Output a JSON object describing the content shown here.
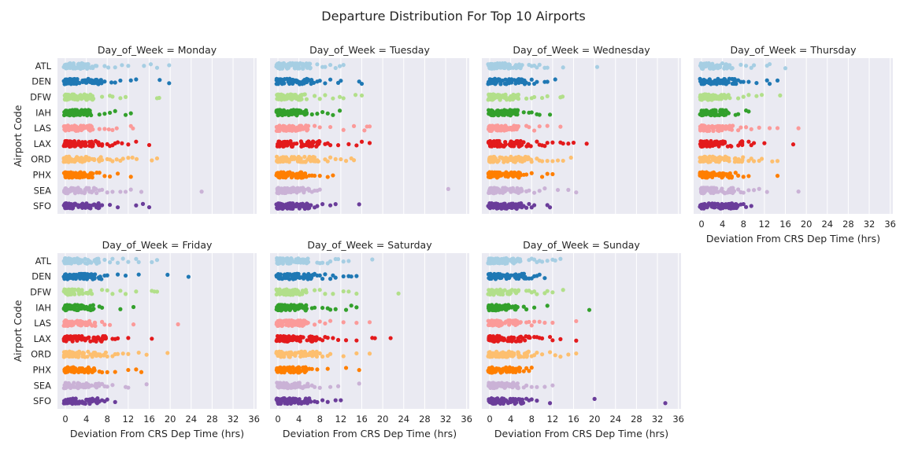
{
  "chart_data": {
    "type": "scatter",
    "title": "Departure Distribution For Top 10 Airports",
    "xlabel": "Deviation From CRS Dep Time (hrs)",
    "ylabel": "Airport Code",
    "xlim": [
      -1.5,
      36.5
    ],
    "xticks": [
      0,
      4,
      8,
      12,
      16,
      20,
      24,
      28,
      32,
      36
    ],
    "categories": [
      "ATL",
      "DEN",
      "DFW",
      "IAH",
      "LAS",
      "LAX",
      "ORD",
      "PHX",
      "SEA",
      "SFO"
    ],
    "grid": true,
    "colors": [
      "#a6cee3",
      "#1f78b4",
      "#b2df8a",
      "#33a02c",
      "#fb9a99",
      "#e31a1c",
      "#fdbf6f",
      "#ff7f00",
      "#cab2d6",
      "#6a3d9a"
    ],
    "background_color": "#eaeaf2",
    "panels": [
      {
        "title": "Day_of_Week = Monday",
        "dense_until": [
          6.0,
          7.0,
          5.5,
          5.0,
          5.5,
          7.5,
          7.5,
          5.5,
          6.0,
          6.5
        ],
        "outliers": [
          [
            7.5,
            8.2,
            9.5,
            10.8,
            12.0,
            15.0,
            16.3,
            17.5,
            19.8
          ],
          [
            7.5,
            8.8,
            9.5,
            10.5,
            12.5,
            13.5,
            18.0,
            19.8
          ],
          [
            7.0,
            8.5,
            9.0,
            10.5,
            11.5,
            17.5,
            17.9
          ],
          [
            6.5,
            7.5,
            8.5,
            9.5,
            11.5,
            12.5
          ],
          [
            6.5,
            7.5,
            8.3,
            9.0,
            9.8,
            12.5,
            12.9
          ],
          [
            8.0,
            8.5,
            9.0,
            9.5,
            10.0,
            10.8,
            12.0,
            13.5,
            16.0
          ],
          [
            8.0,
            8.5,
            9.0,
            9.8,
            10.5,
            11.0,
            12.0,
            12.8,
            13.6,
            16.5,
            17.5
          ],
          [
            6.0,
            6.5,
            7.5,
            8.5,
            10.0,
            12.5
          ],
          [
            6.5,
            7.0,
            8.0,
            9.0,
            10.5,
            11.5,
            12.5,
            14.5,
            26.0
          ],
          [
            7.0,
            8.5,
            10.0,
            13.5,
            14.8,
            16.0
          ]
        ]
      },
      {
        "title": "Day_of_Week = Tuesday",
        "dense_until": [
          6.5,
          7.0,
          5.5,
          5.5,
          6.0,
          8.0,
          8.0,
          5.5,
          6.0,
          6.5
        ],
        "outliers": [
          [
            7.5,
            8.5,
            9.0,
            10.0,
            11.0,
            11.8,
            12.5
          ],
          [
            7.5,
            8.0,
            9.0,
            10.0,
            11.5,
            12.0,
            15.5,
            16.0
          ],
          [
            7.0,
            8.0,
            9.0,
            10.5,
            11.8,
            12.5,
            14.8,
            16.0
          ],
          [
            6.5,
            7.5,
            8.5,
            9.5,
            10.5,
            11.8
          ],
          [
            7.0,
            8.0,
            10.0,
            12.5,
            14.5,
            16.5,
            17.0,
            17.5
          ],
          [
            9.0,
            9.5,
            10.0,
            11.5,
            13.5,
            15.0,
            16.0,
            17.5
          ],
          [
            9.0,
            9.5,
            10.0,
            11.0,
            12.0,
            13.0,
            14.0,
            14.5
          ],
          [
            6.0,
            6.5,
            7.0,
            8.0,
            9.5,
            10.5
          ],
          [
            6.5,
            7.0,
            7.5,
            8.0,
            32.5
          ],
          [
            7.0,
            7.5,
            8.5,
            10.0,
            11.0,
            15.5
          ]
        ]
      },
      {
        "title": "Day_of_Week = Wednesday",
        "dense_until": [
          6.5,
          7.0,
          5.5,
          5.5,
          6.0,
          8.0,
          8.0,
          6.0,
          6.5,
          6.5
        ],
        "outliers": [
          [
            7.5,
            8.0,
            8.5,
            9.0,
            9.5,
            10.5,
            11.0,
            14.0,
            20.5
          ],
          [
            7.5,
            8.0,
            8.5,
            9.0,
            10.5,
            11.0,
            12.5
          ],
          [
            7.0,
            8.0,
            8.5,
            10.0,
            11.0,
            13.5,
            13.9
          ],
          [
            6.5,
            7.5,
            8.0,
            9.0,
            9.5,
            11.5
          ],
          [
            7.0,
            7.5,
            8.5,
            9.5,
            11.0,
            13.5
          ],
          [
            9.0,
            9.5,
            10.0,
            10.5,
            11.0,
            12.0,
            13.5,
            14.0,
            15.0,
            16.0,
            18.5
          ],
          [
            9.0,
            9.5,
            10.0,
            11.0,
            12.0,
            13.0,
            14.0,
            15.5
          ],
          [
            6.5,
            7.0,
            8.0,
            10.0,
            11.0,
            12.0
          ],
          [
            7.0,
            7.5,
            8.5,
            9.5,
            10.5,
            13.0,
            15.0,
            16.5
          ],
          [
            7.0,
            7.5,
            8.0,
            8.5,
            11.0,
            11.5
          ]
        ]
      },
      {
        "title": "Day_of_Week = Thursday",
        "dense_until": [
          6.0,
          7.0,
          5.5,
          5.5,
          6.0,
          8.0,
          8.0,
          6.0,
          6.5,
          7.0
        ],
        "outliers": [
          [
            7.5,
            8.5,
            9.5,
            10.0,
            12.5,
            13.0,
            16.0
          ],
          [
            7.5,
            8.0,
            9.0,
            10.5,
            12.5,
            13.0,
            14.5
          ],
          [
            7.0,
            8.0,
            9.0,
            10.5,
            11.5,
            15.0
          ],
          [
            6.5,
            7.0,
            8.5,
            9.0
          ],
          [
            7.0,
            7.5,
            8.5,
            9.5,
            11.0,
            13.0,
            14.5,
            18.5
          ],
          [
            9.0,
            9.5,
            10.0,
            12.0,
            17.5
          ],
          [
            9.0,
            9.5,
            10.0,
            11.0,
            11.5,
            13.5,
            14.5
          ],
          [
            6.5,
            7.0,
            8.0,
            9.0,
            14.5
          ],
          [
            7.0,
            7.5,
            8.0,
            9.0,
            10.0,
            11.0,
            12.5,
            18.5
          ],
          [
            7.5,
            8.0,
            8.5,
            9.5
          ]
        ]
      },
      {
        "title": "Day_of_Week = Friday",
        "dense_until": [
          6.5,
          7.0,
          5.5,
          5.5,
          6.0,
          8.0,
          8.0,
          6.0,
          6.5,
          6.5
        ],
        "outliers": [
          [
            7.5,
            8.5,
            9.0,
            10.0,
            11.0,
            12.0,
            13.5,
            14.0,
            16.5,
            17.5
          ],
          [
            7.5,
            8.0,
            10.0,
            11.5,
            14.0,
            19.5,
            23.5
          ],
          [
            7.0,
            8.0,
            9.0,
            10.5,
            11.5,
            13.5,
            16.5,
            17.0,
            17.5
          ],
          [
            6.5,
            7.0,
            10.5,
            13.0
          ],
          [
            7.0,
            7.5,
            8.5,
            13.0,
            21.5
          ],
          [
            9.0,
            9.5,
            10.0,
            12.0,
            16.5
          ],
          [
            9.0,
            9.5,
            10.0,
            11.0,
            12.0,
            14.0,
            15.5,
            19.5
          ],
          [
            6.5,
            7.0,
            8.0,
            9.5,
            12.0,
            13.5,
            14.5
          ],
          [
            7.0,
            7.5,
            8.0,
            9.0,
            11.5,
            12.0,
            15.5
          ],
          [
            7.0,
            7.5,
            8.0,
            9.5
          ]
        ]
      },
      {
        "title": "Day_of_Week = Saturday",
        "dense_until": [
          6.0,
          7.0,
          5.5,
          5.5,
          6.0,
          7.5,
          7.5,
          5.5,
          6.0,
          6.5
        ],
        "outliers": [
          [
            7.5,
            8.0,
            8.5,
            9.5,
            10.0,
            11.0,
            11.5,
            12.5,
            13.5,
            18.0
          ],
          [
            7.5,
            8.0,
            8.5,
            9.0,
            10.0,
            10.5,
            11.0,
            12.5,
            13.5,
            14.0,
            15.0
          ],
          [
            7.0,
            8.0,
            9.0,
            10.5,
            12.5,
            13.5,
            15.0,
            23.0
          ],
          [
            6.5,
            7.0,
            8.5,
            9.5,
            10.0,
            11.0,
            13.0,
            14.0,
            15.0
          ],
          [
            7.0,
            8.0,
            9.0,
            10.0,
            12.5,
            15.0,
            17.5
          ],
          [
            8.0,
            8.5,
            9.0,
            9.5,
            10.5,
            11.5,
            13.0,
            15.0,
            18.0,
            18.5,
            21.5
          ],
          [
            8.0,
            8.5,
            9.5,
            10.0,
            12.5,
            15.0,
            17.5
          ],
          [
            6.0,
            6.5,
            7.5,
            9.5,
            13.0,
            15.5
          ],
          [
            6.5,
            7.0,
            8.0,
            10.0,
            11.5,
            15.5
          ],
          [
            7.0,
            7.5,
            8.5,
            9.5,
            11.0,
            12.0
          ]
        ]
      },
      {
        "title": "Day_of_Week = Sunday",
        "dense_until": [
          6.0,
          7.0,
          5.5,
          5.5,
          6.0,
          8.0,
          7.5,
          6.0,
          6.0,
          6.5
        ],
        "outliers": [
          [
            7.5,
            8.0,
            8.5,
            9.0,
            9.5,
            10.0,
            11.0,
            12.0,
            12.5,
            13.5
          ],
          [
            7.5,
            8.0,
            8.5,
            9.0,
            9.5,
            10.5
          ],
          [
            7.0,
            7.5,
            8.0,
            8.5,
            9.0,
            10.5,
            11.0,
            12.0,
            14.0
          ],
          [
            6.5,
            7.0,
            8.5,
            11.0,
            19.0
          ],
          [
            7.0,
            7.5,
            8.0,
            8.5,
            9.5,
            10.5,
            12.0,
            16.5
          ],
          [
            8.5,
            9.0,
            9.5,
            10.0,
            11.5,
            12.0,
            13.5,
            16.5
          ],
          [
            8.0,
            8.5,
            9.0,
            10.0,
            11.5,
            12.5,
            13.5,
            15.0,
            16.5
          ],
          [
            6.5,
            7.0,
            7.5,
            8.0
          ],
          [
            6.5,
            7.0,
            8.0,
            9.0,
            10.5,
            12.0
          ],
          [
            7.0,
            7.5,
            8.0,
            9.0,
            11.5,
            20.0,
            33.5
          ]
        ]
      }
    ]
  }
}
